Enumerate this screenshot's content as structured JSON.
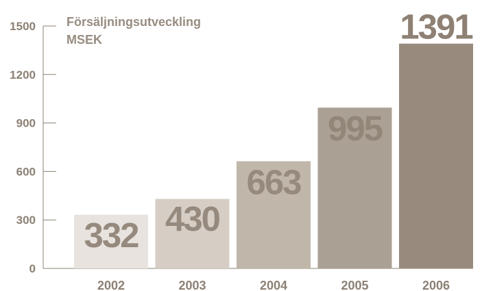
{
  "chart_data": {
    "type": "bar",
    "title": "Försäljningsutveckling",
    "subtitle": "MSEK",
    "categories": [
      "2002",
      "2003",
      "2004",
      "2005",
      "2006"
    ],
    "values": [
      332,
      430,
      663,
      995,
      1391
    ],
    "value_labels": [
      "332",
      "430",
      "663",
      "995",
      "1391"
    ],
    "ylim": [
      0,
      1500
    ],
    "yticks": [
      "0",
      "300",
      "600",
      "900",
      "1200",
      "1500"
    ],
    "bar_colors": [
      "#e8e3de",
      "#d6cec5",
      "#c0b6aa",
      "#aaa094",
      "#988b7d"
    ],
    "label_color": "#968a7e",
    "grid": false,
    "legend": "none"
  }
}
